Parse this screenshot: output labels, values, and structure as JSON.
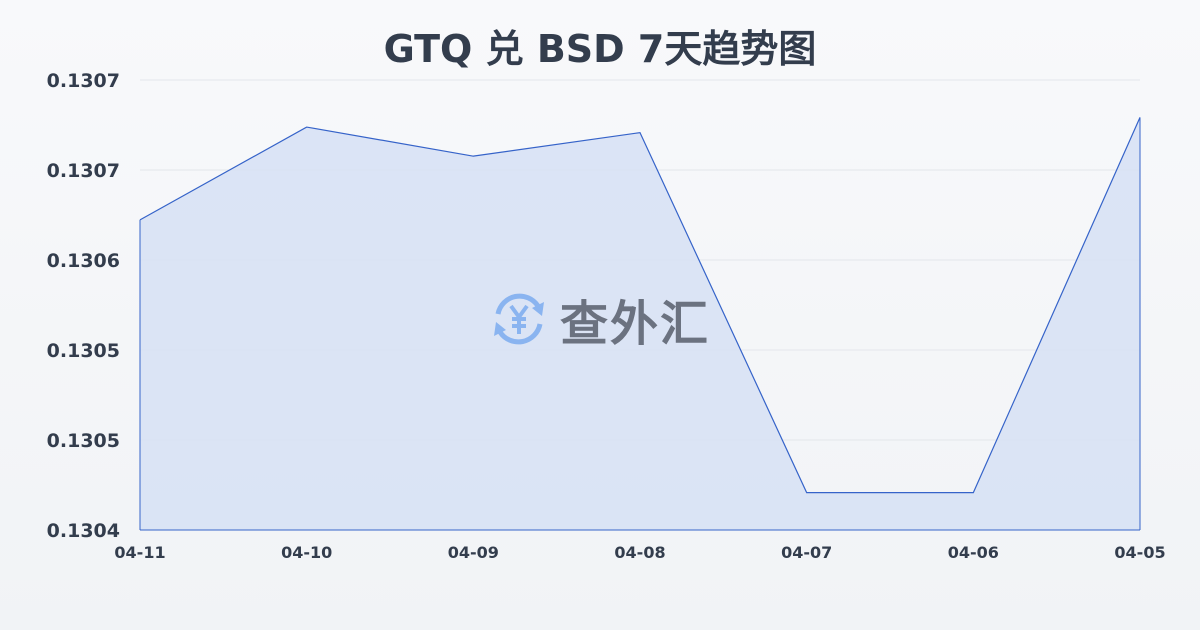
{
  "chart_data": {
    "type": "area",
    "title": "GTQ 兑 BSD 7天趋势图",
    "categories": [
      "04-11",
      "04-10",
      "04-09",
      "04-08",
      "04-07",
      "04-06",
      "04-05"
    ],
    "series": [
      {
        "values": [
          0.130624,
          0.130691,
          0.13067,
          0.130687,
          0.130427,
          0.130427,
          0.130698
        ]
      }
    ],
    "ylim": [
      0.1304,
      0.130725
    ],
    "yticks": [
      0.1304,
      0.130465,
      0.13053,
      0.130595,
      0.13066,
      0.130725
    ],
    "ytick_labels": [
      "0.1304",
      "0.1305",
      "0.1305",
      "0.1306",
      "0.1307",
      "0.1307"
    ],
    "grid": true,
    "line_color": "#3563c9",
    "fill_color": "#d6e0f5"
  },
  "watermark": {
    "text": "查外汇",
    "icon": "yen-exchange-icon",
    "icon_color": "#8ab4f0"
  }
}
